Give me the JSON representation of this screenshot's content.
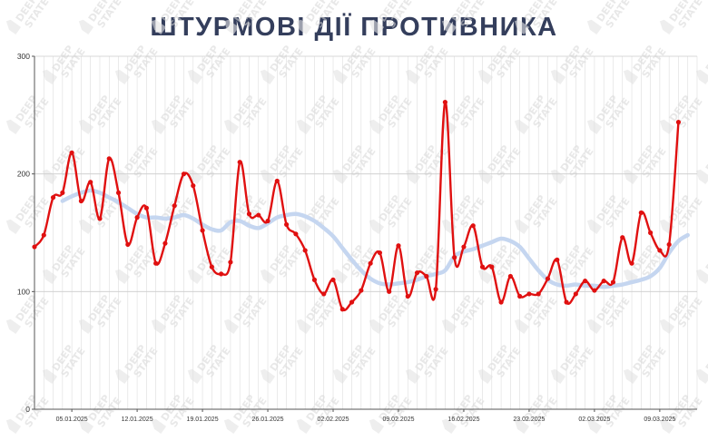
{
  "chart_data": {
    "type": "line",
    "title": "ШТУРМОВІ ДІЇ ПРОТИВНИКА",
    "watermark_text": [
      "DEEP",
      "STATE"
    ],
    "x_start": "2025-01-01",
    "x_end": "2025-03-13",
    "ylim": [
      0,
      300
    ],
    "yticks": [
      0,
      100,
      200,
      300
    ],
    "xticks": [
      "05.01.2025",
      "12.01.2025",
      "19.01.2025",
      "26.01.2025",
      "02.02.2025",
      "09.02.2025",
      "16.02.2025",
      "23.02.2025",
      "02.03.2025",
      "09.03.2025"
    ],
    "grid": true,
    "colors": {
      "daily": "#e01010",
      "average": "#c5d6f0",
      "grid": "#dddddd",
      "axis": "#555555"
    },
    "series": [
      {
        "kind": "daily",
        "start": "2025-01-01",
        "values": [
          138,
          148,
          180,
          184,
          218,
          177,
          193,
          162,
          213,
          184,
          140,
          163,
          171,
          124,
          141,
          173,
          200,
          190,
          152,
          121,
          115,
          125,
          210,
          166,
          165,
          160,
          194,
          157,
          149,
          135,
          110,
          98,
          110,
          85,
          91,
          101,
          124,
          133,
          100,
          139,
          96,
          116,
          113,
          102,
          261,
          129,
          138,
          156,
          121,
          121,
          91,
          113,
          96,
          98,
          98,
          111,
          127,
          91,
          98,
          109,
          101,
          109,
          108,
          146,
          124,
          167,
          150,
          135,
          140,
          244
        ]
      },
      {
        "kind": "average",
        "start": "2025-01-04",
        "values": [
          177,
          181,
          184,
          186,
          184,
          180,
          176,
          171,
          166,
          163,
          163,
          162,
          163,
          165,
          162,
          157,
          153,
          152,
          159,
          160,
          156,
          154,
          158,
          163,
          165,
          166,
          164,
          160,
          154,
          147,
          137,
          127,
          118,
          111,
          107,
          106,
          107,
          108,
          110,
          113,
          115,
          118,
          130,
          134,
          136,
          139,
          142,
          145,
          143,
          138,
          128,
          118,
          110,
          106,
          105,
          106,
          105,
          105,
          104,
          105,
          106,
          108,
          110,
          113,
          120,
          133,
          143,
          148
        ]
      }
    ]
  }
}
